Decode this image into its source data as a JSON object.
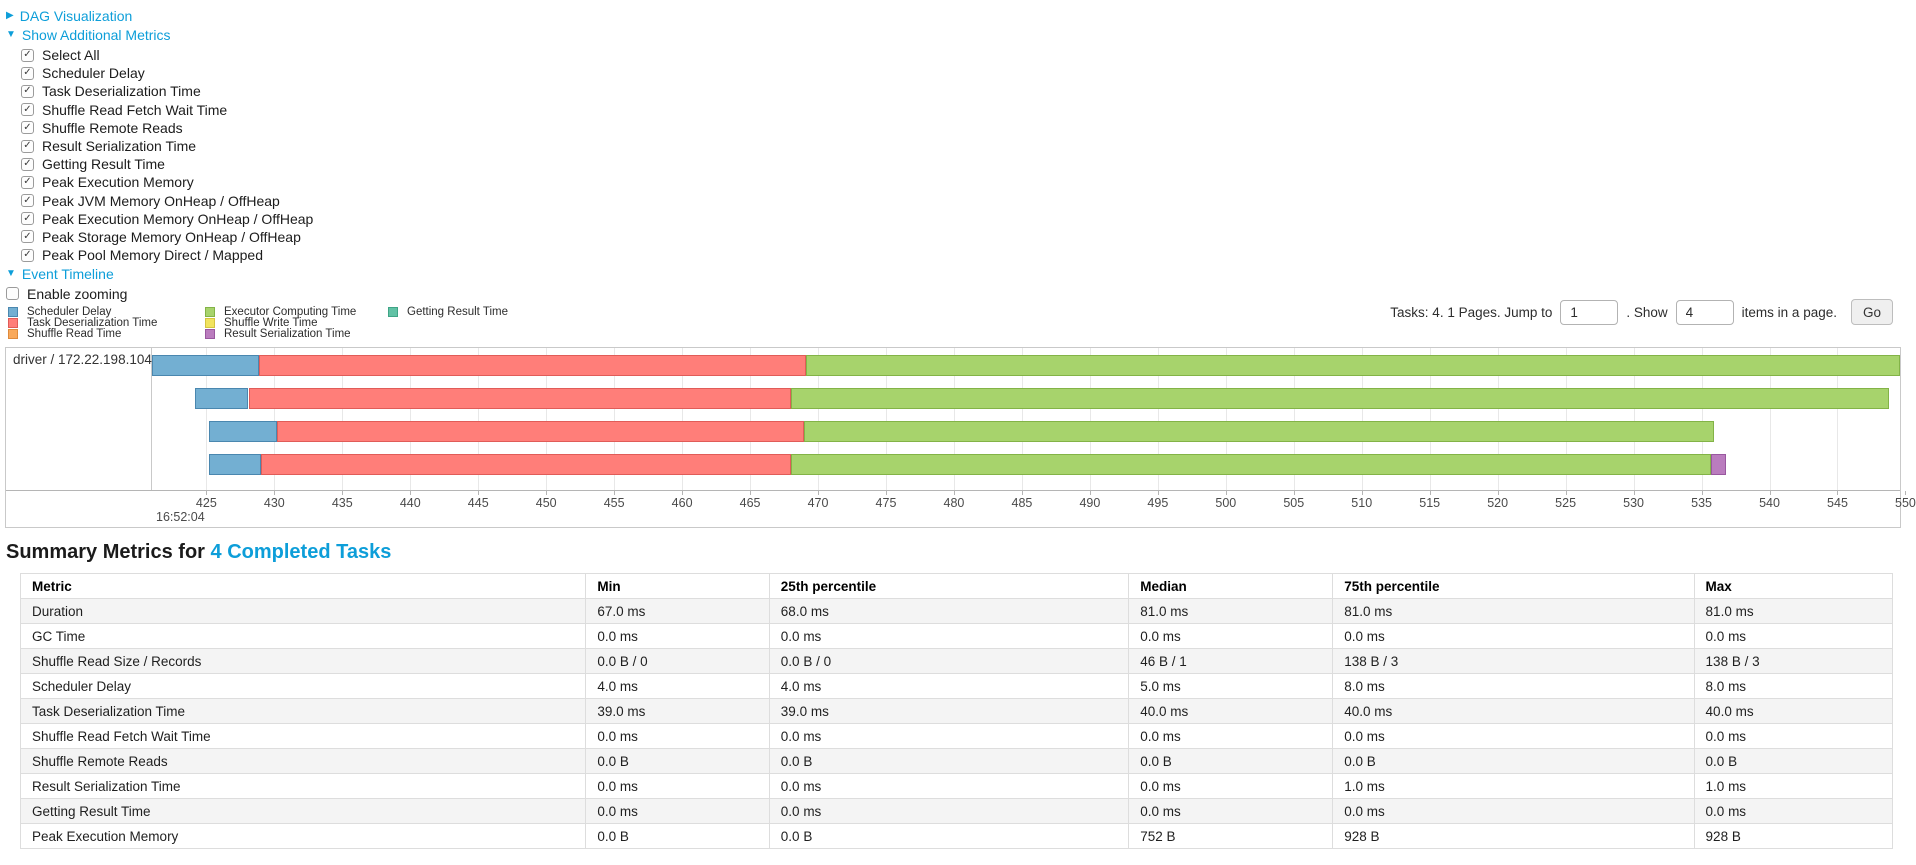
{
  "controls": {
    "dag_label": "DAG Visualization",
    "metrics_label": "Show Additional Metrics",
    "checkboxes": [
      "Select All",
      "Scheduler Delay",
      "Task Deserialization Time",
      "Shuffle Read Fetch Wait Time",
      "Shuffle Remote Reads",
      "Result Serialization Time",
      "Getting Result Time",
      "Peak Execution Memory",
      "Peak JVM Memory OnHeap / OffHeap",
      "Peak Execution Memory OnHeap / OffHeap",
      "Peak Storage Memory OnHeap / OffHeap",
      "Peak Pool Memory Direct / Mapped"
    ],
    "event_timeline_label": "Event Timeline",
    "enable_zooming_label": "Enable zooming",
    "link_color": "#0d9ed9"
  },
  "legend": {
    "columns": [
      [
        {
          "label": "Scheduler Delay",
          "key": "scheduler_delay"
        },
        {
          "label": "Task Deserialization Time",
          "key": "task_deserialization"
        },
        {
          "label": "Shuffle Read Time",
          "key": "shuffle_read"
        }
      ],
      [
        {
          "label": "Executor Computing Time",
          "key": "executor_computing"
        },
        {
          "label": "Shuffle Write Time",
          "key": "shuffle_write"
        },
        {
          "label": "Result Serialization Time",
          "key": "result_serialization"
        }
      ],
      [
        {
          "label": "Getting Result Time",
          "key": "getting_result"
        }
      ]
    ]
  },
  "pagination": {
    "tasks_text": "Tasks: 4. 1 Pages. Jump to",
    "jump_value": "1",
    "show_text": ". Show",
    "show_value": "4",
    "items_text": "items in a page.",
    "go_label": "Go"
  },
  "chart_data": {
    "type": "timeline",
    "title": "Event Timeline",
    "group_label": "driver / 172.22.198.104",
    "axis_start_label": "16:52:04",
    "axis_unit": "milliseconds within 16:52:04",
    "axis_range": [
      421.0,
      549.6
    ],
    "axis_ticks": [
      425,
      430,
      435,
      440,
      445,
      450,
      455,
      460,
      465,
      470,
      475,
      480,
      485,
      490,
      495,
      500,
      505,
      510,
      515,
      520,
      525,
      530,
      535,
      540,
      545,
      550
    ],
    "palette": {
      "scheduler_delay": {
        "fill": "#73AFD2",
        "border": "#4A87AF"
      },
      "task_deserialization": {
        "fill": "#FF7E79",
        "border": "#E05C58"
      },
      "shuffle_read": {
        "fill": "#F9A95B",
        "border": "#DE8A3C"
      },
      "executor_computing": {
        "fill": "#A7D36C",
        "border": "#83B347"
      },
      "shuffle_write": {
        "fill": "#F1E35E",
        "border": "#D4C440"
      },
      "result_serialization": {
        "fill": "#BA7CBE",
        "border": "#99589F"
      },
      "getting_result": {
        "fill": "#61C2A5",
        "border": "#3FA486"
      }
    },
    "tasks": [
      {
        "segments": [
          {
            "key": "scheduler_delay",
            "start": 421.0,
            "end": 428.9
          },
          {
            "key": "task_deserialization",
            "start": 428.9,
            "end": 469.1
          },
          {
            "key": "executor_computing",
            "start": 469.1,
            "end": 549.6
          }
        ]
      },
      {
        "segments": [
          {
            "key": "scheduler_delay",
            "start": 424.2,
            "end": 428.1
          },
          {
            "key": "task_deserialization",
            "start": 428.1,
            "end": 468.0
          },
          {
            "key": "executor_computing",
            "start": 468.0,
            "end": 548.8
          }
        ]
      },
      {
        "segments": [
          {
            "key": "scheduler_delay",
            "start": 425.2,
            "end": 430.2
          },
          {
            "key": "task_deserialization",
            "start": 430.2,
            "end": 469.0
          },
          {
            "key": "executor_computing",
            "start": 469.0,
            "end": 535.9
          }
        ]
      },
      {
        "segments": [
          {
            "key": "scheduler_delay",
            "start": 425.2,
            "end": 429.0
          },
          {
            "key": "task_deserialization",
            "start": 429.0,
            "end": 468.0
          },
          {
            "key": "executor_computing",
            "start": 468.0,
            "end": 535.7
          },
          {
            "key": "result_serialization",
            "start": 535.7,
            "end": 536.8
          }
        ]
      }
    ]
  },
  "summary": {
    "title_prefix": "Summary Metrics for ",
    "title_link": "4 Completed Tasks",
    "columns": [
      "Metric",
      "Min",
      "25th percentile",
      "Median",
      "75th percentile",
      "Max"
    ],
    "rows": [
      {
        "metric": "Duration",
        "values": [
          "67.0 ms",
          "68.0 ms",
          "81.0 ms",
          "81.0 ms",
          "81.0 ms"
        ]
      },
      {
        "metric": "GC Time",
        "values": [
          "0.0 ms",
          "0.0 ms",
          "0.0 ms",
          "0.0 ms",
          "0.0 ms"
        ]
      },
      {
        "metric": "Shuffle Read Size / Records",
        "values": [
          "0.0 B / 0",
          "0.0 B / 0",
          "46 B / 1",
          "138 B / 3",
          "138 B / 3"
        ]
      },
      {
        "metric": "Scheduler Delay",
        "values": [
          "4.0 ms",
          "4.0 ms",
          "5.0 ms",
          "8.0 ms",
          "8.0 ms"
        ]
      },
      {
        "metric": "Task Deserialization Time",
        "values": [
          "39.0 ms",
          "39.0 ms",
          "40.0 ms",
          "40.0 ms",
          "40.0 ms"
        ]
      },
      {
        "metric": "Shuffle Read Fetch Wait Time",
        "values": [
          "0.0 ms",
          "0.0 ms",
          "0.0 ms",
          "0.0 ms",
          "0.0 ms"
        ]
      },
      {
        "metric": "Shuffle Remote Reads",
        "values": [
          "0.0 B",
          "0.0 B",
          "0.0 B",
          "0.0 B",
          "0.0 B"
        ]
      },
      {
        "metric": "Result Serialization Time",
        "values": [
          "0.0 ms",
          "0.0 ms",
          "0.0 ms",
          "1.0 ms",
          "1.0 ms"
        ]
      },
      {
        "metric": "Getting Result Time",
        "values": [
          "0.0 ms",
          "0.0 ms",
          "0.0 ms",
          "0.0 ms",
          "0.0 ms"
        ]
      },
      {
        "metric": "Peak Execution Memory",
        "values": [
          "0.0 B",
          "0.0 B",
          "752 B",
          "928 B",
          "928 B"
        ]
      }
    ]
  }
}
